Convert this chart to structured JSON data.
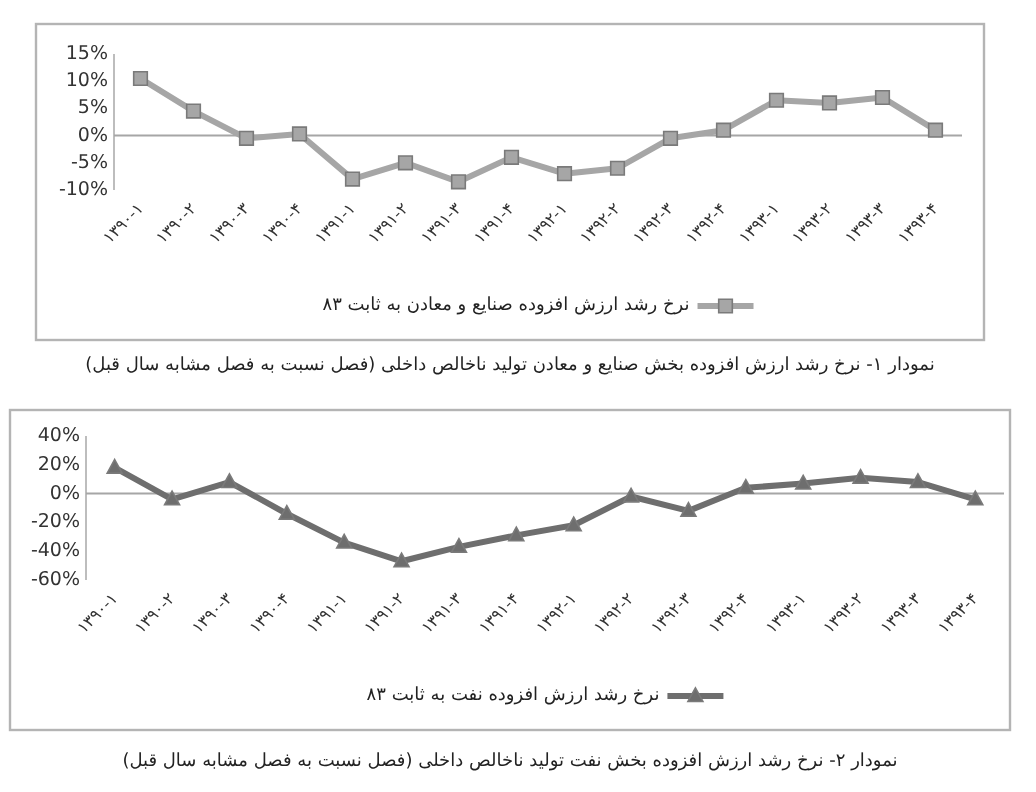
{
  "chart_data": [
    {
      "type": "line",
      "title": "نمودار ۱- نرخ رشد ارزش افزوده بخش صنایع و معادن تولید ناخالص داخلی (فصل نسبت به فصل مشابه سال قبل)",
      "categories": [
        "۱۳۹۰-۱",
        "۱۳۹۰-۲",
        "۱۳۹۰-۳",
        "۱۳۹۰-۴",
        "۱۳۹۱-۱",
        "۱۳۹۱-۲",
        "۱۳۹۱-۳",
        "۱۳۹۱-۴",
        "۱۳۹۲-۱",
        "۱۳۹۲-۲",
        "۱۳۹۲-۳",
        "۱۳۹۲-۴",
        "۱۳۹۳-۱",
        "۱۳۹۳-۲",
        "۱۳۹۳-۳",
        "۱۳۹۳-۴"
      ],
      "series": [
        {
          "name": "نرخ رشد ارزش افزوده صنایع و معادن به ثابت ۸۳",
          "color": "#a6a6a6",
          "values": [
            10.5,
            4.5,
            -0.5,
            0.3,
            -8,
            -5,
            -8.5,
            -4,
            -7,
            -6,
            -0.5,
            1,
            6.5,
            6,
            7,
            1
          ]
        }
      ],
      "ylim": [
        -10,
        15
      ],
      "yticks": [
        {
          "value": -10,
          "label": "-10%"
        },
        {
          "value": -5,
          "label": "-5%"
        },
        {
          "value": 0,
          "label": "0%"
        },
        {
          "value": 5,
          "label": "5%"
        },
        {
          "value": 10,
          "label": "10%"
        },
        {
          "value": 15,
          "label": "15%"
        }
      ],
      "legend": "bottom",
      "marker": "square"
    },
    {
      "type": "line",
      "title": "نمودار ۲- نرخ رشد ارزش افزوده بخش نفت تولید ناخالص داخلی (فصل نسبت به فصل مشابه سال قبل)",
      "categories": [
        "۱۳۹۰-۱",
        "۱۳۹۰-۲",
        "۱۳۹۰-۳",
        "۱۳۹۰-۴",
        "۱۳۹۱-۱",
        "۱۳۹۱-۲",
        "۱۳۹۱-۳",
        "۱۳۹۱-۴",
        "۱۳۹۲-۱",
        "۱۳۹۲-۲",
        "۱۳۹۲-۳",
        "۱۳۹۲-۴",
        "۱۳۹۳-۱",
        "۱۳۹۳-۲",
        "۱۳۹۳-۳",
        "۱۳۹۳-۴"
      ],
      "series": [
        {
          "name": "نرخ رشد ارزش افزوده نفت به ثابت ۸۳",
          "color": "#6e6e6e",
          "values": [
            18,
            -4,
            8,
            -14,
            -34,
            -47,
            -37,
            -29,
            -22,
            -2,
            -12,
            4,
            7,
            11,
            8,
            -4
          ]
        }
      ],
      "ylim": [
        -60,
        40
      ],
      "yticks": [
        {
          "value": -60,
          "label": "-60%"
        },
        {
          "value": -40,
          "label": "-40%"
        },
        {
          "value": -20,
          "label": "-20%"
        },
        {
          "value": 0,
          "label": "0%"
        },
        {
          "value": 20,
          "label": "20%"
        },
        {
          "value": 40,
          "label": "40%"
        }
      ],
      "legend": "bottom",
      "marker": "triangle"
    }
  ]
}
